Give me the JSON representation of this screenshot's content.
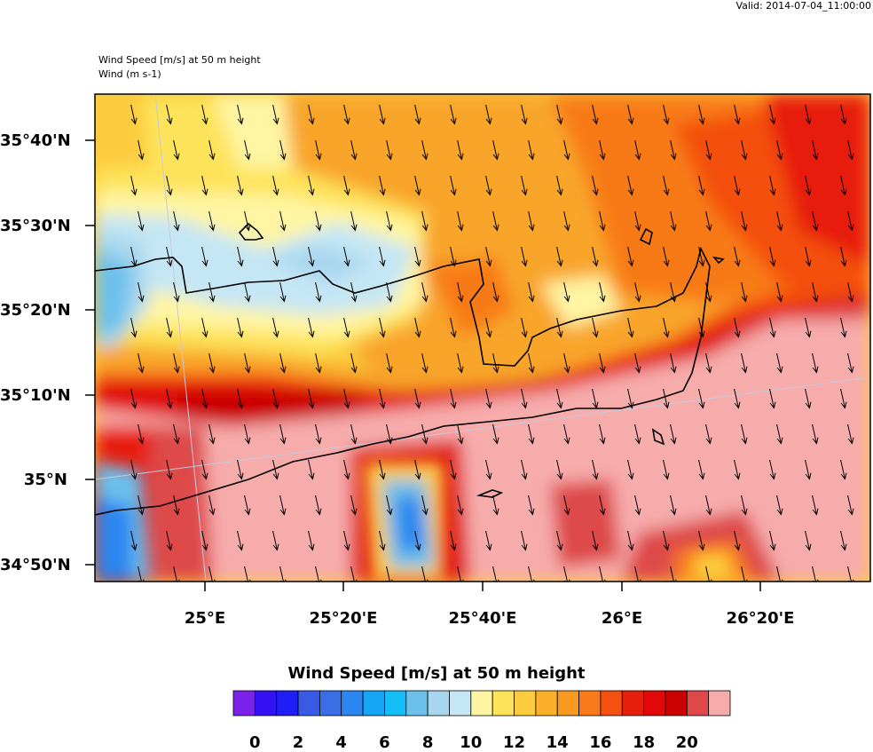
{
  "header": {
    "valid": "Valid: 2014-07-04_11:00:00",
    "field_title": "Wind Speed [m/s] at 50 m height",
    "vector_title": "Wind   (m s-1)"
  },
  "map": {
    "lat_labels": [
      "35°40'N",
      "35°30'N",
      "35°20'N",
      "35°10'N",
      "35°N",
      "34°50'N"
    ],
    "lon_labels": [
      "25°E",
      "25°20'E",
      "25°40'E",
      "26°E",
      "26°20'E"
    ],
    "wind_direction": "north-north-west"
  },
  "colorbar": {
    "title": "Wind Speed [m/s] at 50 m height",
    "labels": [
      "0",
      "2",
      "4",
      "6",
      "8",
      "10",
      "12",
      "14",
      "16",
      "18",
      "20"
    ],
    "colors": [
      "#7b22ea",
      "#3410f5",
      "#1f1ff5",
      "#3a5ae6",
      "#3a6ee6",
      "#2b86f0",
      "#16a4f5",
      "#14bdf5",
      "#6cc0ec",
      "#a9d7ef",
      "#c5e6f4",
      "#fff5a3",
      "#fde35a",
      "#fccc3e",
      "#fbb02c",
      "#f89a20",
      "#f87a18",
      "#f45010",
      "#e81e0c",
      "#e00808",
      "#cb0000",
      "#de4848",
      "#f7acac"
    ]
  }
}
